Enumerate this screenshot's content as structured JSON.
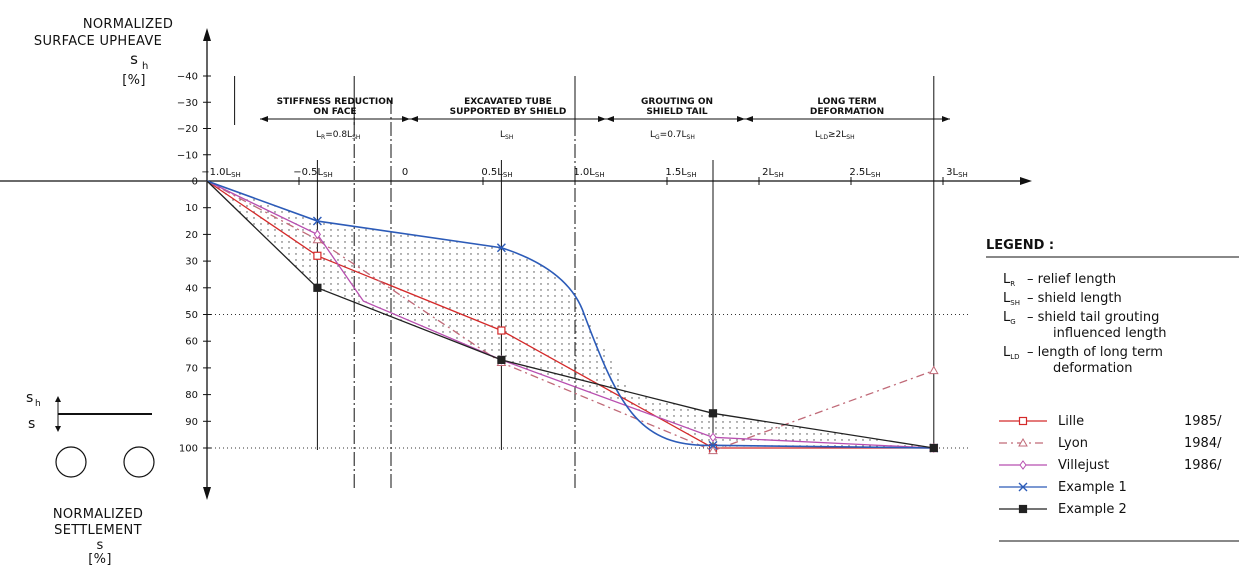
{
  "axis_text": {
    "top_line1": "NORMALIZED",
    "top_line2": "SURFACE  UPHEAVE",
    "top_symbol": "s",
    "top_symbol_sub": "h",
    "top_unit": "[%]",
    "bottom_line1": "NORMALIZED",
    "bottom_line2": "SETTLEMENT",
    "bottom_symbol": "s",
    "bottom_unit": "[%]",
    "sketch_upper": "s",
    "sketch_upper_sub": "h",
    "sketch_lower": "s"
  },
  "phases": [
    {
      "name_line1": "STIFFNESS REDUCTION",
      "name_line2": "ON FACE",
      "length": "L",
      "length_sub": "R",
      "length_suffix": "=0.8L",
      "length_suffix_sub": "SH"
    },
    {
      "name_line1": "EXCAVATED TUBE",
      "name_line2": "SUPPORTED BY SHIELD",
      "length": "L",
      "length_sub": "SH",
      "length_suffix": "",
      "length_suffix_sub": ""
    },
    {
      "name_line1": "GROUTING ON",
      "name_line2": "SHIELD TAIL",
      "length": "L",
      "length_sub": "G",
      "length_suffix": "=0.7L",
      "length_suffix_sub": "SH"
    },
    {
      "name_line1": "LONG TERM",
      "name_line2": "DEFORMATION",
      "length": "L",
      "length_sub": "LD",
      "length_suffix": "≥2L",
      "length_suffix_sub": "SH"
    }
  ],
  "legend": {
    "title": "LEGEND :",
    "definitions": [
      {
        "symbol": "L",
        "sub": "R",
        "text": "–  relief length",
        "text2": ""
      },
      {
        "symbol": "L",
        "sub": "SH",
        "text": "–  shield length",
        "text2": ""
      },
      {
        "symbol": "L",
        "sub": "G",
        "text": "–  shield tail grouting",
        "text2": "influenced length"
      },
      {
        "symbol": "L",
        "sub": "LD",
        "text": "–  length of long term",
        "text2": "deformation"
      }
    ],
    "series": [
      {
        "label": "Lille",
        "year": "1985/",
        "color": "#d42a2a",
        "marker": "square",
        "dash": ""
      },
      {
        "label": "Lyon",
        "year": "1984/",
        "color": "#c06a78",
        "marker": "triangle",
        "dash": "8,4,2,4"
      },
      {
        "label": "Villejust",
        "year": "1986/",
        "color": "#b84fb0",
        "marker": "diamond",
        "dash": ""
      },
      {
        "label": "Example 1",
        "year": "",
        "color": "#2c5bb8",
        "marker": "x",
        "dash": ""
      },
      {
        "label": "Example 2",
        "year": "",
        "color": "#222222",
        "marker": "filled-square",
        "dash": ""
      }
    ]
  },
  "chart_data": {
    "type": "line",
    "title": "",
    "xlabel": "",
    "ylabel": "NORMALIZED SURFACE UPHEAVE s_h [%] / NORMALIZED SETTLEMENT s [%]",
    "x_unit": "L_SH",
    "xlim": [
      -1.0,
      3.0
    ],
    "ylim_upheave": [
      -40,
      0
    ],
    "ylim_settlement": [
      0,
      100
    ],
    "x_tick_labels": [
      {
        "x": -1.0,
        "text": "-1.0L",
        "sub": "SH"
      },
      {
        "x": -0.5,
        "text": "-0.5L",
        "sub": "SH"
      },
      {
        "x": 0.0,
        "text": "0",
        "sub": ""
      },
      {
        "x": 0.5,
        "text": "0.5L",
        "sub": "SH"
      },
      {
        "x": 1.0,
        "text": "1.0L",
        "sub": "SH"
      },
      {
        "x": 1.5,
        "text": "1.5L",
        "sub": "SH"
      },
      {
        "x": 2.0,
        "text": "2L",
        "sub": "SH"
      },
      {
        "x": 2.5,
        "text": "2.5L",
        "sub": "SH"
      },
      {
        "x": 3.0,
        "text": "3L",
        "sub": "SH"
      }
    ],
    "y_ticks_upheave": [
      -40,
      -30,
      -20,
      -10
    ],
    "y_ticks_settlement": [
      0,
      10,
      20,
      30,
      40,
      50,
      60,
      70,
      80,
      90,
      100
    ],
    "phase_boundaries": [
      -1.0,
      -0.2,
      0.0,
      1.0,
      3.0
    ],
    "measurement_sections": [
      -0.4,
      0.6,
      1.75,
      2.95
    ],
    "reference_lines": [
      50,
      100
    ],
    "series": [
      {
        "name": "Lille",
        "x": [
          -1.0,
          -0.4,
          0.6,
          1.75,
          2.95
        ],
        "y": [
          0,
          28,
          56,
          100,
          100
        ]
      },
      {
        "name": "Lyon",
        "x": [
          -1.0,
          -0.4,
          0.6,
          1.75,
          2.95
        ],
        "y": [
          0,
          22,
          68,
          101,
          71
        ]
      },
      {
        "name": "Villejust",
        "x": [
          -1.0,
          -0.4,
          -0.15,
          0.6,
          1.75,
          2.95
        ],
        "y": [
          0,
          20,
          45,
          67,
          96,
          100
        ]
      },
      {
        "name": "Example 1",
        "x": [
          -1.0,
          -0.4,
          0.6,
          0.85,
          1.05,
          1.35,
          1.75,
          2.95
        ],
        "y": [
          0,
          15,
          25,
          32,
          50,
          85,
          99,
          100
        ]
      },
      {
        "name": "Example 2",
        "x": [
          -1.0,
          -0.4,
          0.6,
          1.75,
          2.95
        ],
        "y": [
          0,
          40,
          67,
          87,
          100
        ]
      }
    ]
  }
}
